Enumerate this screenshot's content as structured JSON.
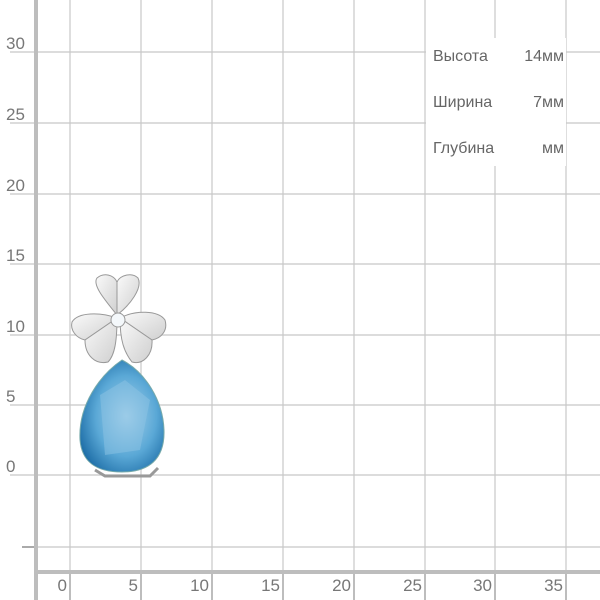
{
  "y_axis": {
    "ticks": [
      "30",
      "25",
      "20",
      "15",
      "10",
      "5",
      "0"
    ]
  },
  "x_axis": {
    "ticks": [
      "0",
      "5",
      "10",
      "15",
      "20",
      "25",
      "30",
      "35"
    ]
  },
  "dimensions": [
    {
      "label": "Высота",
      "value": "14мм"
    },
    {
      "label": "Ширина",
      "value": "7мм"
    },
    {
      "label": "Глубина",
      "value": "мм"
    }
  ],
  "colors": {
    "grid": "#c8c8c8",
    "axis": "#bdbdbd",
    "gem": "#4a9ccc",
    "metal": "#e4e4e4"
  },
  "product": {
    "icon": "pendant-flower-blue-topaz-image"
  }
}
